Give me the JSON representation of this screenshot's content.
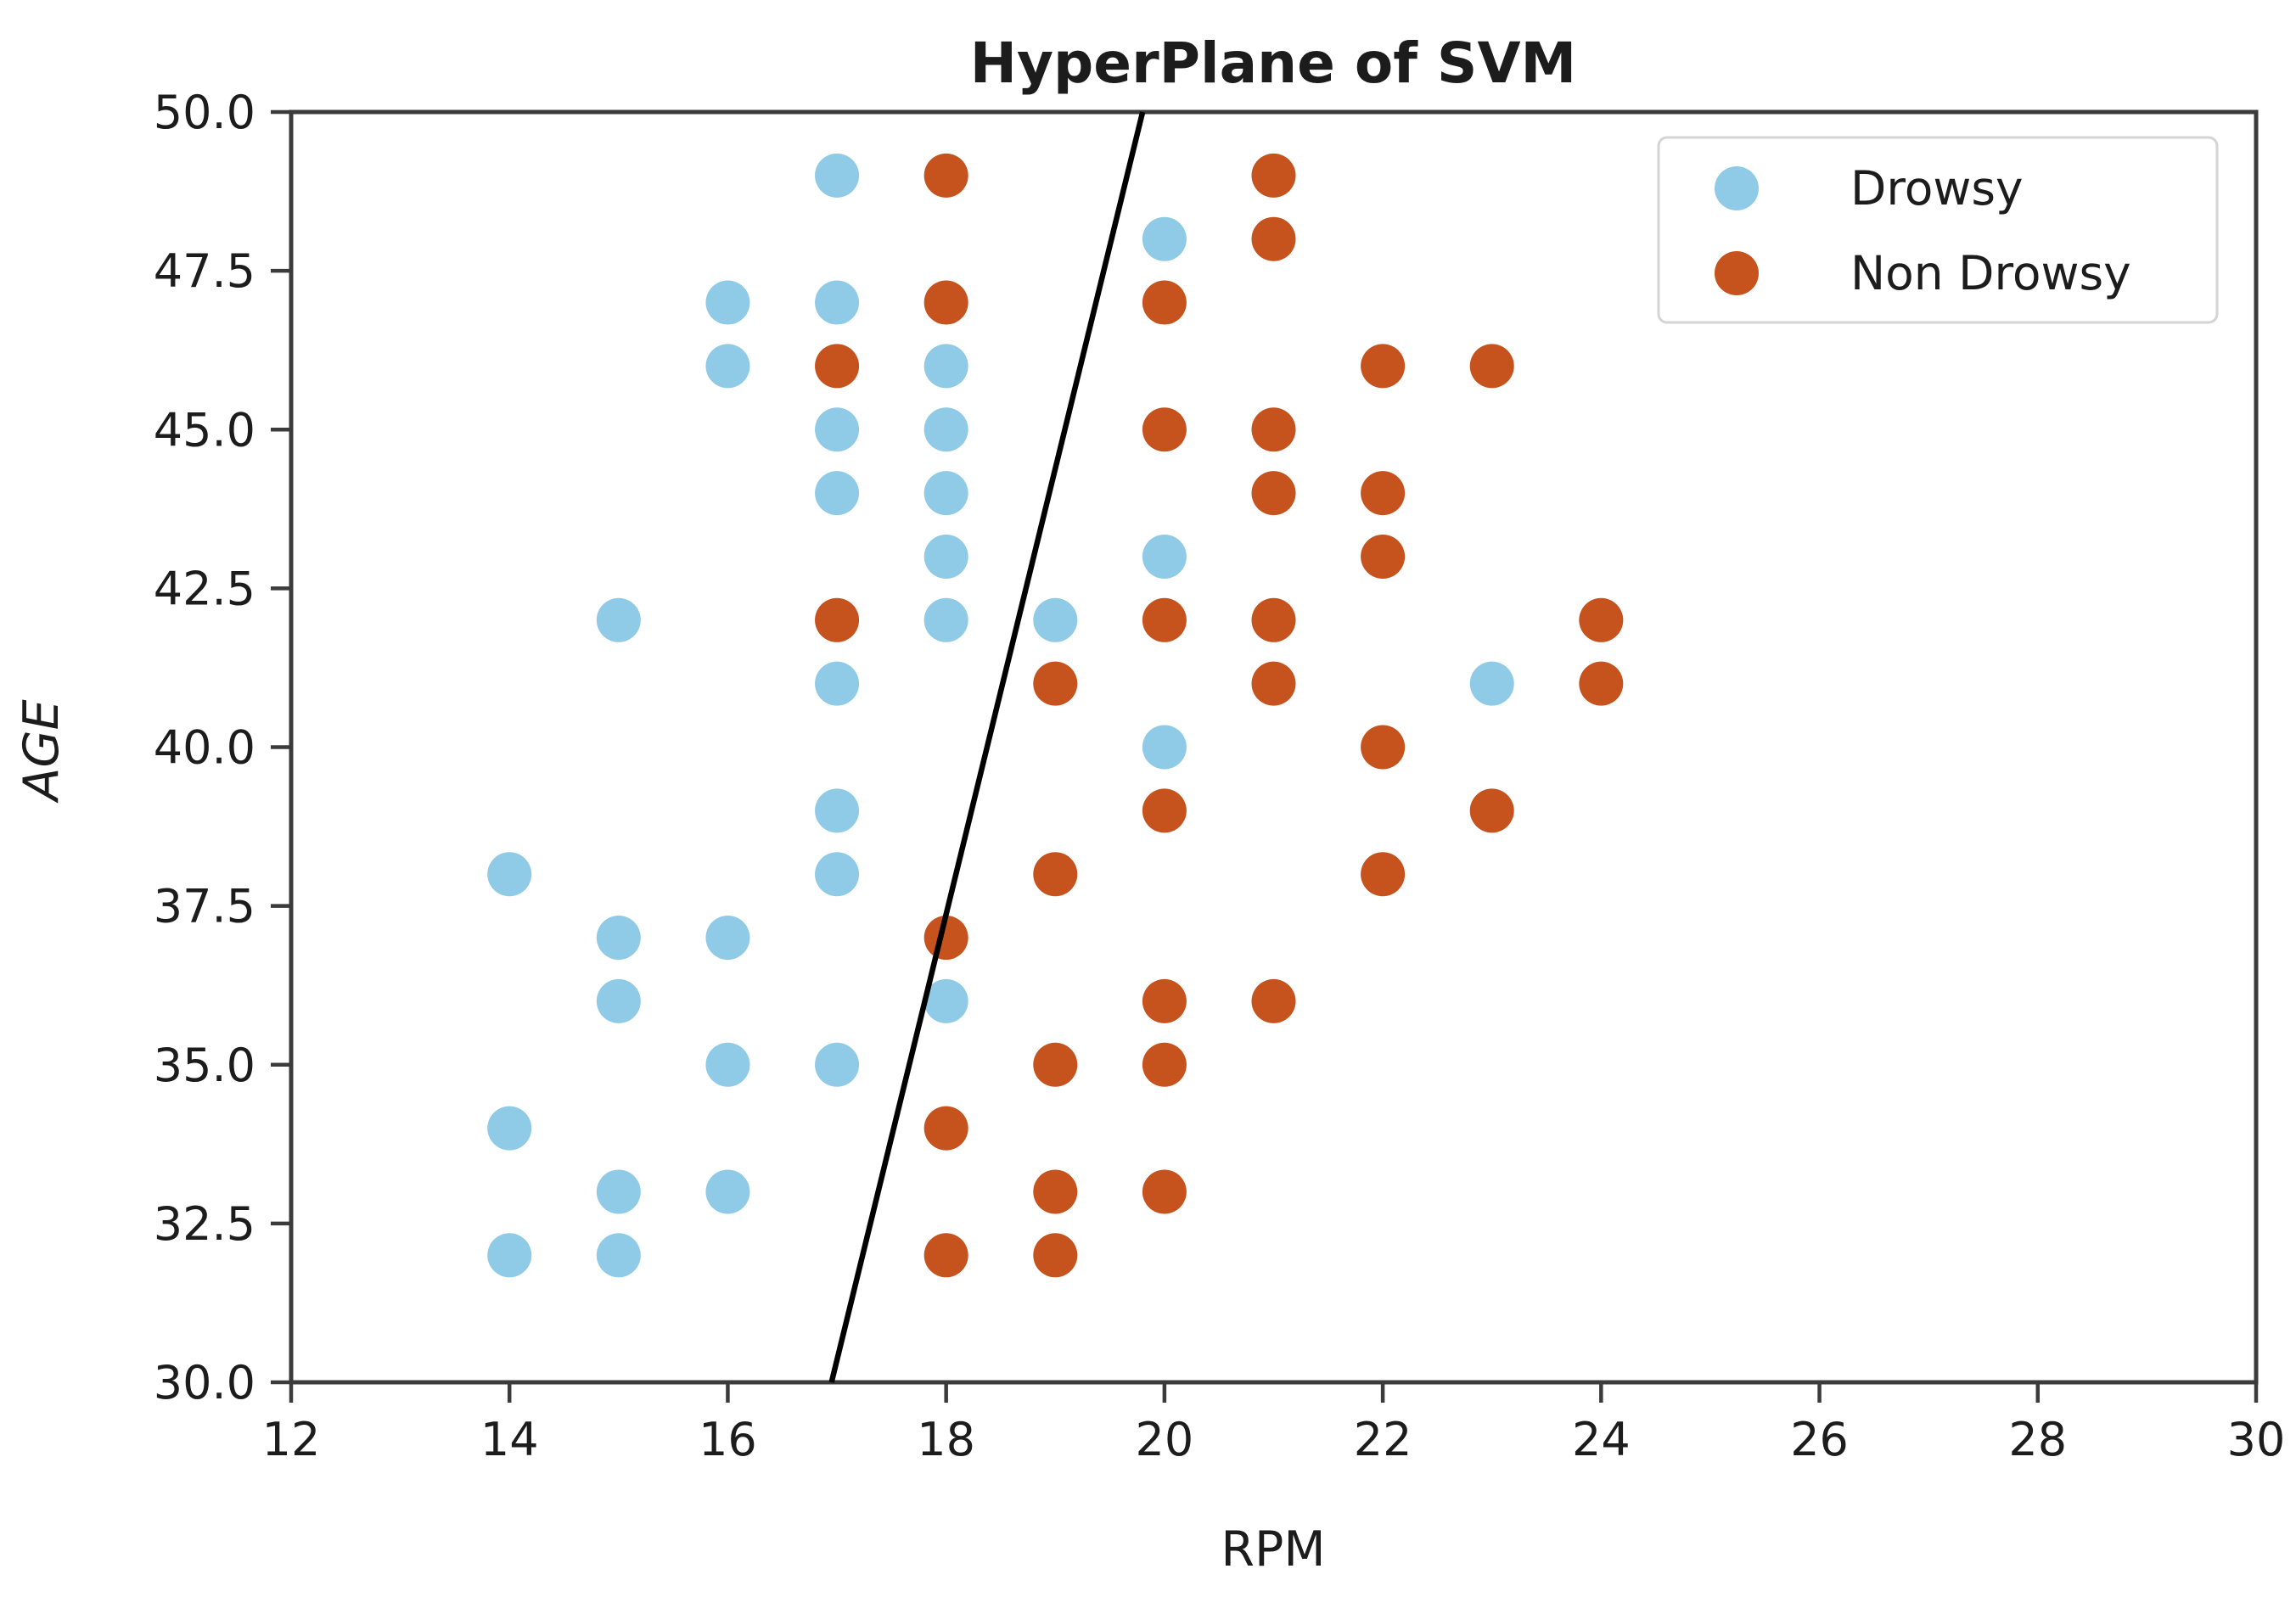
{
  "chart_data": {
    "type": "scatter",
    "title": "HyperPlane of SVM",
    "xlabel": "RPM",
    "ylabel": "AGE",
    "xlim": [
      12,
      30
    ],
    "ylim": [
      30.0,
      50.0
    ],
    "grid": false,
    "xticks": [
      {
        "value": 12,
        "label": "12"
      },
      {
        "value": 14,
        "label": "14"
      },
      {
        "value": 16,
        "label": "16"
      },
      {
        "value": 18,
        "label": "18"
      },
      {
        "value": 20,
        "label": "20"
      },
      {
        "value": 22,
        "label": "22"
      },
      {
        "value": 24,
        "label": "24"
      },
      {
        "value": 26,
        "label": "26"
      },
      {
        "value": 28,
        "label": "28"
      },
      {
        "value": 30,
        "label": "30"
      }
    ],
    "yticks": [
      {
        "value": 30.0,
        "label": "30.0"
      },
      {
        "value": 32.5,
        "label": "32.5"
      },
      {
        "value": 35.0,
        "label": "35.0"
      },
      {
        "value": 37.5,
        "label": "37.5"
      },
      {
        "value": 40.0,
        "label": "40.0"
      },
      {
        "value": 42.5,
        "label": "42.5"
      },
      {
        "value": 45.0,
        "label": "45.0"
      },
      {
        "value": 47.5,
        "label": "47.5"
      },
      {
        "value": 50.0,
        "label": "50.0"
      }
    ],
    "series": [
      {
        "name": "Drowsy",
        "color": "#8FCBE7",
        "points": [
          [
            17,
            49
          ],
          [
            20,
            48
          ],
          [
            16,
            47
          ],
          [
            17,
            47
          ],
          [
            16,
            46
          ],
          [
            18,
            46
          ],
          [
            17,
            45
          ],
          [
            18,
            45
          ],
          [
            17,
            44
          ],
          [
            18,
            44
          ],
          [
            18,
            43
          ],
          [
            20,
            43
          ],
          [
            15,
            42
          ],
          [
            18,
            42
          ],
          [
            19,
            42
          ],
          [
            17,
            41
          ],
          [
            23,
            41
          ],
          [
            20,
            40
          ],
          [
            17,
            39
          ],
          [
            14,
            38
          ],
          [
            17,
            38
          ],
          [
            15,
            37
          ],
          [
            16,
            37
          ],
          [
            15,
            36
          ],
          [
            18,
            36
          ],
          [
            16,
            35
          ],
          [
            17,
            35
          ],
          [
            14,
            34
          ],
          [
            15,
            33
          ],
          [
            16,
            33
          ],
          [
            14,
            32
          ],
          [
            15,
            32
          ]
        ]
      },
      {
        "name": "Non Drowsy",
        "color": "#C6521D",
        "points": [
          [
            18,
            49
          ],
          [
            21,
            49
          ],
          [
            21,
            48
          ],
          [
            18,
            47
          ],
          [
            20,
            47
          ],
          [
            17,
            46
          ],
          [
            22,
            46
          ],
          [
            23,
            46
          ],
          [
            20,
            45
          ],
          [
            21,
            45
          ],
          [
            21,
            44
          ],
          [
            22,
            44
          ],
          [
            22,
            43
          ],
          [
            17,
            42
          ],
          [
            20,
            42
          ],
          [
            21,
            42
          ],
          [
            24,
            42
          ],
          [
            19,
            41
          ],
          [
            21,
            41
          ],
          [
            24,
            41
          ],
          [
            22,
            40
          ],
          [
            20,
            39
          ],
          [
            23,
            39
          ],
          [
            19,
            38
          ],
          [
            22,
            38
          ],
          [
            18,
            37
          ],
          [
            20,
            36
          ],
          [
            21,
            36
          ],
          [
            19,
            35
          ],
          [
            20,
            35
          ],
          [
            18,
            34
          ],
          [
            19,
            33
          ],
          [
            20,
            33
          ],
          [
            18,
            32
          ],
          [
            19,
            32
          ]
        ]
      }
    ],
    "hyperplane": {
      "color": "#000000",
      "points": [
        [
          16.95,
          30.0
        ],
        [
          19.8,
          50.0
        ]
      ]
    },
    "legend": {
      "position": "upper right",
      "entries": [
        {
          "label": "Drowsy",
          "color": "#8FCBE7"
        },
        {
          "label": "Non Drowsy",
          "color": "#C6521D"
        }
      ]
    },
    "style": {
      "spine_color": "#3B3B3B",
      "tick_color": "#3B3B3B",
      "text_color": "#1c1c1c",
      "legend_border_color": "#D4D4D4",
      "background": "#ffffff"
    }
  }
}
